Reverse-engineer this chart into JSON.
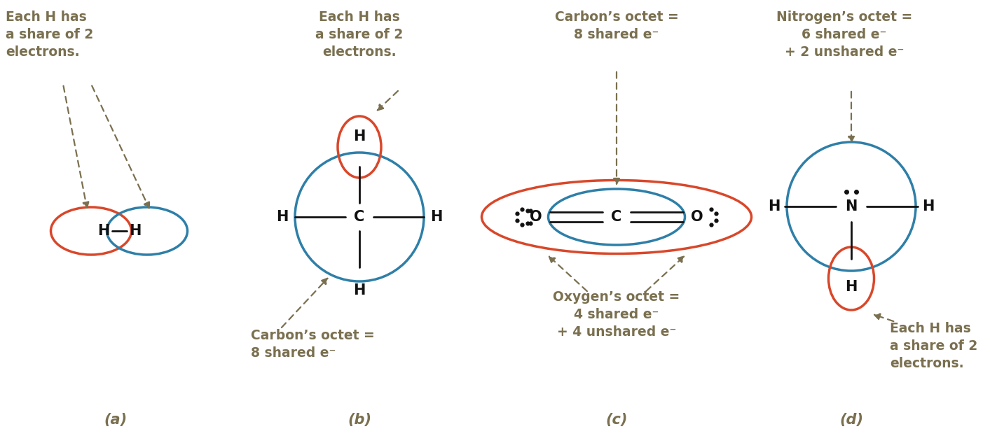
{
  "bg_color": "#ffffff",
  "text_color": "#7a7050",
  "atom_color": "#111111",
  "red_color": "#d9472a",
  "blue_color": "#2e7fa8",
  "arrow_color": "#7a7050",
  "label_a": "(a)",
  "label_b": "(b)",
  "label_c": "(c)",
  "label_d": "(d)",
  "text_a1": "Each H has\na share of 2\nelectrons.",
  "text_b1": "Each H has\na share of 2\nelectrons.",
  "text_b2": "Carbon’s octet =\n8 shared e⁻",
  "text_c1": "Carbon’s octet =\n8 shared e⁻",
  "text_c2": "Oxygen’s octet =\n4 shared e⁻\n+ 4 unshared e⁻",
  "text_d1": "Nitrogen’s octet =\n6 shared e⁻\n+ 2 unshared e⁻",
  "text_d2": "Each H has\na share of 2\nelectrons.",
  "font_size_label": 15,
  "font_size_text": 13.5,
  "font_size_atom": 15
}
